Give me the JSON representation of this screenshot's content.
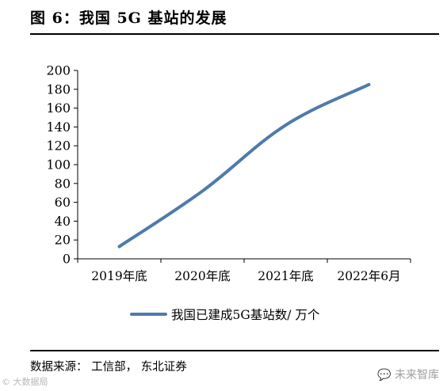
{
  "figure": {
    "title": "图 6：我国 5G 基站的发展",
    "source": "数据来源： 工信部， 东北证券"
  },
  "watermarks": {
    "left": "© 大数据局",
    "right": "未来智库",
    "right_icon": "chat-bubble-icon"
  },
  "chart_data": {
    "type": "line",
    "categories": [
      "2019年底",
      "2020年底",
      "2021年底",
      "2022年6月"
    ],
    "series": [
      {
        "name": "我国已建成5G基站数/ 万个",
        "values": [
          13,
          72,
          142,
          185
        ],
        "color": "#4F7AAB"
      }
    ],
    "yticks": [
      "0",
      "20",
      "40",
      "60",
      "80",
      "100",
      "120",
      "140",
      "160",
      "180",
      "200"
    ],
    "ylim": [
      0,
      200
    ],
    "grid": false,
    "legend": "bottom-center"
  }
}
